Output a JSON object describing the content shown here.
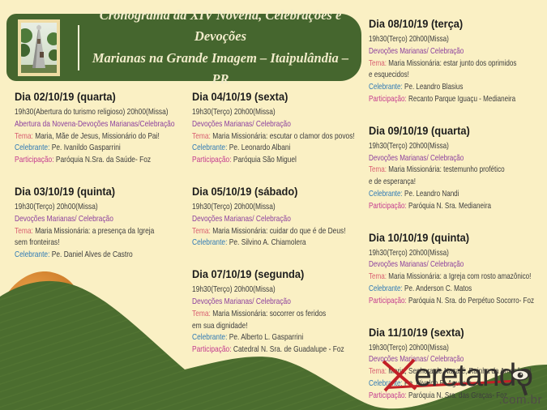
{
  "header": {
    "title_line1": "Cronograma da XIV Novena, Celebrações e Devoções",
    "title_line2": "Marianas na Grande Imagem – Itaipulândia – PR"
  },
  "colors": {
    "background": "#FAF0C4",
    "header_green": "#45662E",
    "leaf_green": "#4B6D2F",
    "orange_accent": "#D9832E",
    "devocao_purple": "#8C3F9E",
    "tema_rose": "#D85F70",
    "celebrante_blue": "#2E79B5",
    "participacao_magenta": "#C43B8F",
    "watermark_red": "#C22026"
  },
  "columns": [
    {
      "entries": [
        {
          "date": "Dia 02/10/19 (quarta)",
          "lines": [
            [
              {
                "t": "19h30(Abertura do turismo religioso) 20h00(Missa)",
                "c": "plain"
              }
            ],
            [
              {
                "t": "Abertura da Novena-Devoções Marianas/Celebração",
                "c": "devocao"
              }
            ],
            [
              {
                "t": "Tema:",
                "c": "tema"
              },
              {
                "t": " Maria, Mãe de Jesus, Missionário do Pai!",
                "c": "plain"
              }
            ],
            [
              {
                "t": "Celebrante:",
                "c": "celebrante"
              },
              {
                "t": " Pe. Ivanildo Gasparrini",
                "c": "plain"
              }
            ],
            [
              {
                "t": "Participação:",
                "c": "participacao"
              },
              {
                "t": " Paróquia N.Sra. da Saúde- Foz",
                "c": "plain"
              }
            ]
          ]
        },
        {
          "date": "Dia 03/10/19 (quinta)",
          "lines": [
            [
              {
                "t": "19h30(Terço) 20h00(Missa)",
                "c": "plain"
              }
            ],
            [
              {
                "t": "Devoções Marianas/ Celebração",
                "c": "devocao"
              }
            ],
            [
              {
                "t": "Tema:",
                "c": "tema"
              },
              {
                "t": " Maria Missionária: a presença da Igreja",
                "c": "plain"
              }
            ],
            [
              {
                "t": "sem fronteiras!",
                "c": "plain"
              }
            ],
            [
              {
                "t": "Celebrante:",
                "c": "celebrante"
              },
              {
                "t": " Pe. Daniel Alves de Castro",
                "c": "plain"
              }
            ]
          ]
        }
      ]
    },
    {
      "entries": [
        {
          "date": "Dia 04/10/19 (sexta)",
          "lines": [
            [
              {
                "t": "19h30(Terço) 20h00(Missa)",
                "c": "plain"
              }
            ],
            [
              {
                "t": "Devoções Marianas/ Celebração",
                "c": "devocao"
              }
            ],
            [
              {
                "t": "Tema:",
                "c": "tema"
              },
              {
                "t": " Maria Missionária: escutar o clamor dos povos!",
                "c": "plain"
              }
            ],
            [
              {
                "t": "Celebrante:",
                "c": "celebrante"
              },
              {
                "t": " Pe. Leonardo Albani",
                "c": "plain"
              }
            ],
            [
              {
                "t": "Participação:",
                "c": "participacao"
              },
              {
                "t": " Paróquia São Miguel",
                "c": "plain"
              }
            ]
          ]
        },
        {
          "date": "Dia 05/10/19 (sábado)",
          "lines": [
            [
              {
                "t": "19h30(Terço) 20h00(Missa)",
                "c": "plain"
              }
            ],
            [
              {
                "t": "Devoções Marianas/ Celebração",
                "c": "devocao"
              }
            ],
            [
              {
                "t": "Tema:",
                "c": "tema"
              },
              {
                "t": " Maria Missionária: cuidar do que é de Deus!",
                "c": "plain"
              }
            ],
            [
              {
                "t": "Celebrante:",
                "c": "celebrante"
              },
              {
                "t": " Pe. Silvino A. Chiamolera",
                "c": "plain"
              }
            ]
          ]
        },
        {
          "date": "Dia 07/10/19 (segunda)",
          "lines": [
            [
              {
                "t": "19h30(Terço) 20h00(Missa)",
                "c": "plain"
              }
            ],
            [
              {
                "t": "Devoções Marianas/ Celebração",
                "c": "devocao"
              }
            ],
            [
              {
                "t": "Tema:",
                "c": "tema"
              },
              {
                "t": " Maria Missionária: socorrer os feridos",
                "c": "plain"
              }
            ],
            [
              {
                "t": "em sua dignidade!",
                "c": "plain"
              }
            ],
            [
              {
                "t": "Celebrante:",
                "c": "celebrante"
              },
              {
                "t": " Pe. Alberto L. Gasparrini",
                "c": "plain"
              }
            ],
            [
              {
                "t": "Participação:",
                "c": "participacao"
              },
              {
                "t": " Catedral N. Sra. de Guadalupe - Foz",
                "c": "plain"
              }
            ]
          ]
        }
      ]
    },
    {
      "entries": [
        {
          "date": "Dia 08/10/19 (terça)",
          "lines": [
            [
              {
                "t": "19h30(Terço) 20h00(Missa)",
                "c": "plain"
              }
            ],
            [
              {
                "t": "Devoções Marianas/ Celebração",
                "c": "devocao"
              }
            ],
            [
              {
                "t": "Tema:",
                "c": "tema"
              },
              {
                "t": " Maria Missionária: estar junto dos oprimidos",
                "c": "plain"
              }
            ],
            [
              {
                "t": "e esquecidos!",
                "c": "plain"
              }
            ],
            [
              {
                "t": "Celebrante:",
                "c": "celebrante"
              },
              {
                "t": " Pe. Leandro Blasius",
                "c": "plain"
              }
            ],
            [
              {
                "t": "Participação:",
                "c": "participacao"
              },
              {
                "t": " Recanto Parque Iguaçu - Medianeira",
                "c": "plain"
              }
            ]
          ]
        },
        {
          "date": "Dia 09/10/19 (quarta)",
          "lines": [
            [
              {
                "t": "19h30(Terço) 20h00(Missa)",
                "c": "plain"
              }
            ],
            [
              {
                "t": "Devoções Marianas/ Celebração",
                "c": "devocao"
              }
            ],
            [
              {
                "t": "Tema:",
                "c": "tema"
              },
              {
                "t": " Maria Missionária: testemunho profético",
                "c": "plain"
              }
            ],
            [
              {
                "t": "e de esperança!",
                "c": "plain"
              }
            ],
            [
              {
                "t": "Celebrante:",
                "c": "celebrante"
              },
              {
                "t": " Pe. Leandro Nandi",
                "c": "plain"
              }
            ],
            [
              {
                "t": "Participação:",
                "c": "participacao"
              },
              {
                "t": " Paróquia N. Sra. Medianeira",
                "c": "plain"
              }
            ]
          ]
        },
        {
          "date": "Dia 10/10/19 (quinta)",
          "lines": [
            [
              {
                "t": "19h30(Terço) 20h00(Missa)",
                "c": "plain"
              }
            ],
            [
              {
                "t": "Devoções Marianas/ Celebração",
                "c": "devocao"
              }
            ],
            [
              {
                "t": "Tema:",
                "c": "tema"
              },
              {
                "t": " Maria Missionária: a Igreja com rosto amazônico!",
                "c": "plain"
              }
            ],
            [
              {
                "t": "Celebrante:",
                "c": "celebrante"
              },
              {
                "t": " Pe. Anderson C. Matos",
                "c": "plain"
              }
            ],
            [
              {
                "t": "Participação:",
                "c": "participacao"
              },
              {
                "t": " Paróquia N. Sra. do Perpétuo Socorro- Foz",
                "c": "plain"
              }
            ]
          ]
        },
        {
          "date": "Dia 11/10/19 (sexta)",
          "lines": [
            [
              {
                "t": "19h30(Terço) 20h00(Missa)",
                "c": "plain"
              }
            ],
            [
              {
                "t": "Devoções Marianas/ Celebração",
                "c": "devocao"
              }
            ],
            [
              {
                "t": "Tema:",
                "c": "tema"
              },
              {
                "t": " Maria, Senhora de Nazaré, Rainha da Amazônia!",
                "c": "plain"
              }
            ],
            [
              {
                "t": "Celebrante:",
                "c": "celebrante"
              },
              {
                "t": " Pe. Nivaldo R. Aguilera",
                "c": "plain"
              }
            ],
            [
              {
                "t": "Participação:",
                "c": "participacao"
              },
              {
                "t": " Paróquia N. Sra. das Graças- Foz",
                "c": "plain"
              }
            ]
          ]
        }
      ]
    }
  ],
  "watermark": {
    "word": "eretando",
    "domain": ".com.br"
  }
}
